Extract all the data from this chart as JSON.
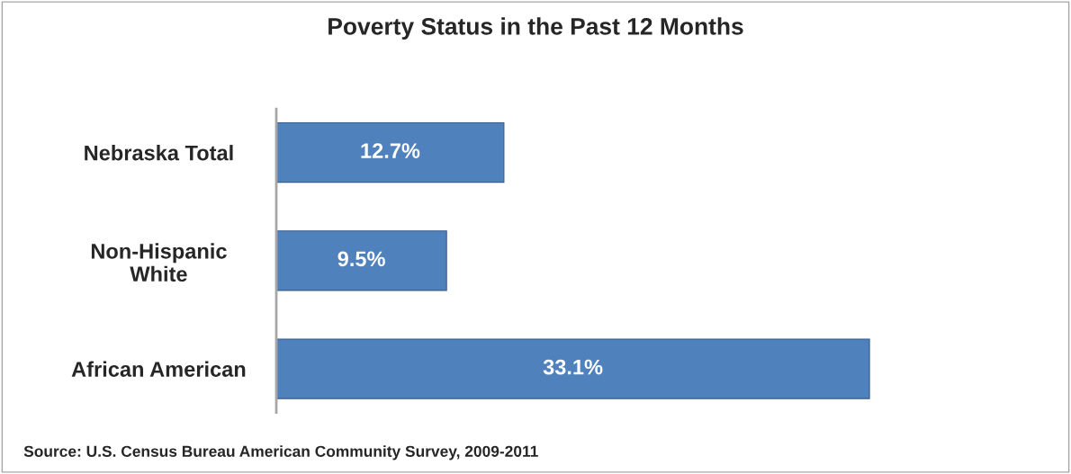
{
  "chart_data": {
    "type": "bar",
    "orientation": "horizontal",
    "title": "Poverty Status in the Past 12 Months",
    "categories": [
      "Nebraska Total",
      "Non-Hispanic\nWhite",
      "African American"
    ],
    "values": [
      12.7,
      9.5,
      33.1
    ],
    "color": "#4f81bd",
    "value_labels": [
      "12.7%",
      "9.5%",
      "33.1%"
    ],
    "tick_labels": "y",
    "grid": false,
    "legend": false,
    "annotations": [
      "Source: U.S. Census Bureau American Community Survey, 2009-2011"
    ]
  }
}
